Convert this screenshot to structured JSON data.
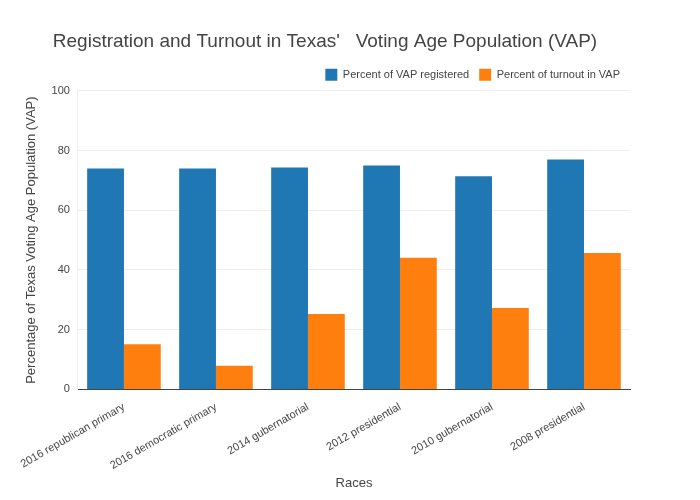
{
  "chart_data": {
    "type": "bar",
    "title": "Registration and Turnout in Texas'   Voting Age Population (VAP)",
    "x_label": "Races",
    "y_label": "Percentage of Texas Voting Age Population (VAP)",
    "categories": [
      "2016 republican primary",
      "2016 democratic primary",
      "2014 gubernatorial",
      "2012 presidential",
      "2010 gubernatorial",
      "2008 presidential"
    ],
    "series": [
      {
        "name": "Percent of VAP registered",
        "color": "#1f77b4",
        "values": [
          74.0,
          74.0,
          74.3,
          75.0,
          71.4,
          77.0
        ]
      },
      {
        "name": "Percent of turnout in VAP",
        "color": "#ff7f0e",
        "values": [
          15.1,
          7.9,
          25.3,
          44.1,
          27.3,
          45.7
        ]
      }
    ],
    "ylim": [
      0,
      100
    ],
    "yticks": [
      0,
      20,
      40,
      60,
      80,
      100
    ],
    "grid": true,
    "legend": "top-right"
  }
}
